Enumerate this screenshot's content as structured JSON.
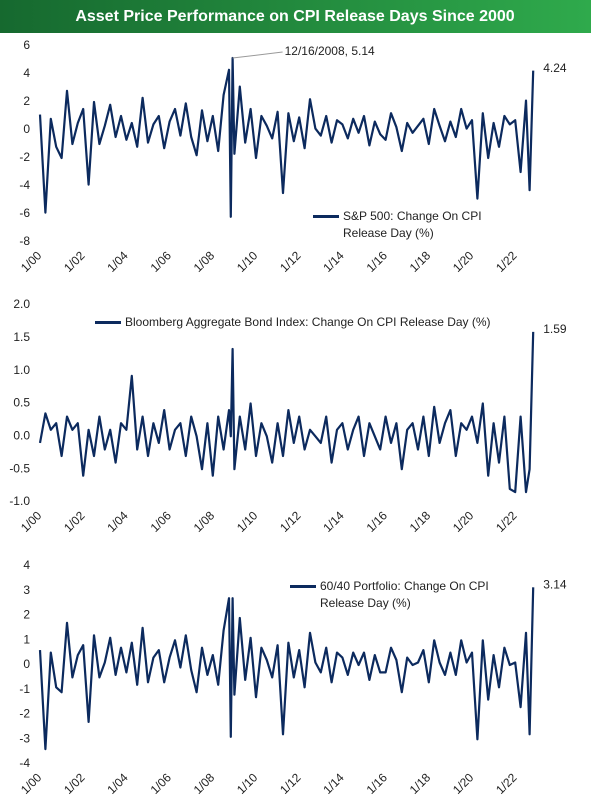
{
  "title": "Asset Price Performance on CPI Release Days Since 2000",
  "chart_data": [
    {
      "type": "line",
      "legend": "lower right",
      "annotation": "12/16/2008, 5.14",
      "x": [
        "1/00",
        "4/00",
        "7/00",
        "10/00",
        "1/01",
        "4/01",
        "7/01",
        "10/01",
        "1/02",
        "4/02",
        "7/02",
        "10/02",
        "1/03",
        "4/03",
        "7/03",
        "10/03",
        "1/04",
        "4/04",
        "7/04",
        "10/04",
        "1/05",
        "4/05",
        "7/05",
        "10/05",
        "1/06",
        "4/06",
        "7/06",
        "10/06",
        "1/07",
        "4/07",
        "7/07",
        "10/07",
        "1/08",
        "4/08",
        "7/08",
        "10/08",
        "11/08",
        "12/08",
        "1/09",
        "4/09",
        "7/09",
        "10/09",
        "1/10",
        "4/10",
        "7/10",
        "10/10",
        "1/11",
        "4/11",
        "7/11",
        "10/11",
        "1/12",
        "4/12",
        "7/12",
        "10/12",
        "1/13",
        "4/13",
        "7/13",
        "10/13",
        "1/14",
        "4/14",
        "7/14",
        "10/14",
        "1/15",
        "4/15",
        "7/15",
        "10/15",
        "1/16",
        "4/16",
        "7/16",
        "10/16",
        "1/17",
        "4/17",
        "7/17",
        "10/17",
        "1/18",
        "4/18",
        "7/18",
        "10/18",
        "1/19",
        "4/19",
        "7/19",
        "10/19",
        "1/20",
        "4/20",
        "7/20",
        "10/20",
        "1/21",
        "4/21",
        "7/21",
        "10/21",
        "1/22",
        "4/22",
        "7/22",
        "9/22",
        "11/22"
      ],
      "xticks": [
        "1/00",
        "1/02",
        "1/04",
        "1/06",
        "1/08",
        "1/10",
        "1/12",
        "1/14",
        "1/16",
        "1/18",
        "1/20",
        "1/22"
      ],
      "ylim": [
        -8,
        6
      ],
      "yticks": [
        -8,
        -6,
        -4,
        -2,
        0,
        2,
        4,
        6
      ],
      "series": [
        {
          "name": "S&P 500: Change On CPI Release Day (%)",
          "color": "#0c2a5e",
          "values": [
            1.1,
            -5.9,
            0.8,
            -1.2,
            -2.0,
            2.8,
            -1.0,
            0.5,
            1.5,
            -3.9,
            2.0,
            -1.0,
            0.3,
            1.8,
            -0.5,
            1.0,
            -0.7,
            0.5,
            -1.2,
            2.3,
            -0.9,
            0.4,
            1.0,
            -1.3,
            0.6,
            1.5,
            -0.4,
            1.9,
            -0.5,
            -1.8,
            1.4,
            -0.8,
            1.0,
            -1.5,
            2.5,
            4.3,
            -6.2,
            5.14,
            -1.7,
            3.1,
            -0.9,
            1.5,
            -2.0,
            1.0,
            0.3,
            -0.6,
            1.3,
            -4.5,
            1.2,
            -0.8,
            0.9,
            -1.3,
            2.2,
            0.1,
            -0.4,
            1.0,
            -0.9,
            0.7,
            0.4,
            -0.6,
            0.8,
            -0.2,
            1.0,
            -1.1,
            0.6,
            -0.3,
            -0.7,
            1.2,
            0.2,
            -1.5,
            0.5,
            -0.2,
            0.3,
            0.8,
            -1.0,
            1.5,
            0.3,
            -0.8,
            0.6,
            -0.5,
            1.5,
            0.1,
            0.7,
            -4.9,
            1.2,
            -2.0,
            0.5,
            -1.2,
            1.0,
            0.4,
            0.7,
            -3.0,
            2.1,
            -4.3,
            4.24
          ]
        }
      ]
    },
    {
      "type": "line",
      "legend": "upper center",
      "x": [
        "1/00",
        "4/00",
        "7/00",
        "10/00",
        "1/01",
        "4/01",
        "7/01",
        "10/01",
        "1/02",
        "4/02",
        "7/02",
        "10/02",
        "1/03",
        "4/03",
        "7/03",
        "10/03",
        "1/04",
        "4/04",
        "7/04",
        "10/04",
        "1/05",
        "4/05",
        "7/05",
        "10/05",
        "1/06",
        "4/06",
        "7/06",
        "10/06",
        "1/07",
        "4/07",
        "7/07",
        "10/07",
        "1/08",
        "4/08",
        "7/08",
        "10/08",
        "11/08",
        "12/08",
        "1/09",
        "4/09",
        "7/09",
        "10/09",
        "1/10",
        "4/10",
        "7/10",
        "10/10",
        "1/11",
        "4/11",
        "7/11",
        "10/11",
        "1/12",
        "4/12",
        "7/12",
        "10/12",
        "1/13",
        "4/13",
        "7/13",
        "10/13",
        "1/14",
        "4/14",
        "7/14",
        "10/14",
        "1/15",
        "4/15",
        "7/15",
        "10/15",
        "1/16",
        "4/16",
        "7/16",
        "10/16",
        "1/17",
        "4/17",
        "7/17",
        "10/17",
        "1/18",
        "4/18",
        "7/18",
        "10/18",
        "1/19",
        "4/19",
        "7/19",
        "10/19",
        "1/20",
        "4/20",
        "7/20",
        "10/20",
        "1/21",
        "4/21",
        "7/21",
        "10/21",
        "1/22",
        "4/22",
        "7/22",
        "9/22",
        "11/22"
      ],
      "xticks": [
        "1/00",
        "1/02",
        "1/04",
        "1/06",
        "1/08",
        "1/10",
        "1/12",
        "1/14",
        "1/16",
        "1/18",
        "1/20",
        "1/22"
      ],
      "ylim": [
        -1,
        2
      ],
      "yticks": [
        {
          "value": -1,
          "label": "-1.0"
        },
        -0.5,
        {
          "value": 0,
          "label": "0.0"
        },
        0.5,
        {
          "value": 1,
          "label": "1.0"
        },
        1.5,
        {
          "value": 2,
          "label": "2.0"
        }
      ],
      "series": [
        {
          "name": "Bloomberg Aggregate Bond Index: Change On CPI Release Day (%)",
          "color": "#0c2a5e",
          "values": [
            -0.1,
            0.35,
            0.1,
            0.2,
            -0.3,
            0.3,
            0.1,
            0.2,
            -0.6,
            0.1,
            -0.3,
            0.3,
            -0.2,
            0.1,
            -0.4,
            0.2,
            0.1,
            0.92,
            -0.2,
            0.3,
            -0.3,
            0.2,
            -0.1,
            0.4,
            -0.2,
            0.1,
            0.2,
            -0.3,
            0.3,
            0.0,
            -0.5,
            0.2,
            -0.6,
            0.3,
            -0.2,
            0.4,
            0.0,
            1.33,
            -0.5,
            0.3,
            -0.2,
            0.5,
            -0.3,
            0.2,
            0.0,
            -0.4,
            0.2,
            -0.3,
            0.4,
            -0.1,
            0.3,
            -0.2,
            0.1,
            0.0,
            -0.1,
            0.3,
            -0.4,
            0.1,
            0.2,
            -0.2,
            0.1,
            0.3,
            -0.3,
            0.2,
            0.0,
            -0.2,
            0.3,
            -0.1,
            0.2,
            -0.5,
            0.1,
            0.2,
            -0.2,
            0.3,
            -0.3,
            0.45,
            -0.1,
            0.2,
            0.4,
            -0.3,
            0.2,
            0.1,
            0.3,
            -0.1,
            0.5,
            -0.6,
            0.2,
            -0.4,
            0.3,
            -0.8,
            -0.85,
            0.3,
            -0.85,
            -0.5,
            1.59
          ]
        }
      ]
    },
    {
      "type": "line",
      "legend": "upper right",
      "x": [
        "1/00",
        "4/00",
        "7/00",
        "10/00",
        "1/01",
        "4/01",
        "7/01",
        "10/01",
        "1/02",
        "4/02",
        "7/02",
        "10/02",
        "1/03",
        "4/03",
        "7/03",
        "10/03",
        "1/04",
        "4/04",
        "7/04",
        "10/04",
        "1/05",
        "4/05",
        "7/05",
        "10/05",
        "1/06",
        "4/06",
        "7/06",
        "10/06",
        "1/07",
        "4/07",
        "7/07",
        "10/07",
        "1/08",
        "4/08",
        "7/08",
        "10/08",
        "11/08",
        "12/08",
        "1/09",
        "4/09",
        "7/09",
        "10/09",
        "1/10",
        "4/10",
        "7/10",
        "10/10",
        "1/11",
        "4/11",
        "7/11",
        "10/11",
        "1/12",
        "4/12",
        "7/12",
        "10/12",
        "1/13",
        "4/13",
        "7/13",
        "10/13",
        "1/14",
        "4/14",
        "7/14",
        "10/14",
        "1/15",
        "4/15",
        "7/15",
        "10/15",
        "1/16",
        "4/16",
        "7/16",
        "10/16",
        "1/17",
        "4/17",
        "7/17",
        "10/17",
        "1/18",
        "4/18",
        "7/18",
        "10/18",
        "1/19",
        "4/19",
        "7/19",
        "10/19",
        "1/20",
        "4/20",
        "7/20",
        "10/20",
        "1/21",
        "4/21",
        "7/21",
        "10/21",
        "1/22",
        "4/22",
        "7/22",
        "9/22",
        "11/22"
      ],
      "xticks": [
        "1/00",
        "1/02",
        "1/04",
        "1/06",
        "1/08",
        "1/10",
        "1/12",
        "1/14",
        "1/16",
        "1/18",
        "1/20",
        "1/22"
      ],
      "ylim": [
        -4,
        4
      ],
      "yticks": [
        -4,
        -3,
        -2,
        -1,
        0,
        1,
        2,
        3,
        4
      ],
      "series": [
        {
          "name": "60/40 Portfolio: Change On CPI Release Day (%)",
          "color": "#0c2a5e",
          "values": [
            0.6,
            -3.4,
            0.5,
            -0.9,
            -1.1,
            1.7,
            -0.5,
            0.4,
            0.8,
            -2.3,
            1.2,
            -0.5,
            0.1,
            1.1,
            -0.4,
            0.7,
            -0.3,
            0.9,
            -0.8,
            1.5,
            -0.7,
            0.3,
            0.6,
            -0.7,
            0.3,
            1.0,
            -0.1,
            1.2,
            -0.2,
            -1.1,
            0.7,
            -0.4,
            0.4,
            -0.8,
            1.4,
            2.7,
            -2.9,
            2.7,
            -1.2,
            1.9,
            -0.6,
            1.1,
            -1.3,
            0.7,
            0.2,
            -0.5,
            0.8,
            -2.8,
            0.9,
            -0.5,
            0.6,
            -0.9,
            1.3,
            0.1,
            -0.3,
            0.7,
            -0.7,
            0.5,
            0.3,
            -0.4,
            0.5,
            0.0,
            0.5,
            -0.6,
            0.4,
            -0.3,
            -0.3,
            0.7,
            0.2,
            -1.1,
            0.3,
            0.0,
            0.1,
            0.6,
            -0.7,
            1.0,
            0.1,
            -0.4,
            0.5,
            -0.4,
            1.0,
            0.1,
            0.5,
            -3.0,
            1.0,
            -1.4,
            0.4,
            -0.9,
            0.7,
            0.0,
            0.1,
            -1.7,
            1.3,
            -2.8,
            3.14
          ]
        }
      ]
    }
  ]
}
